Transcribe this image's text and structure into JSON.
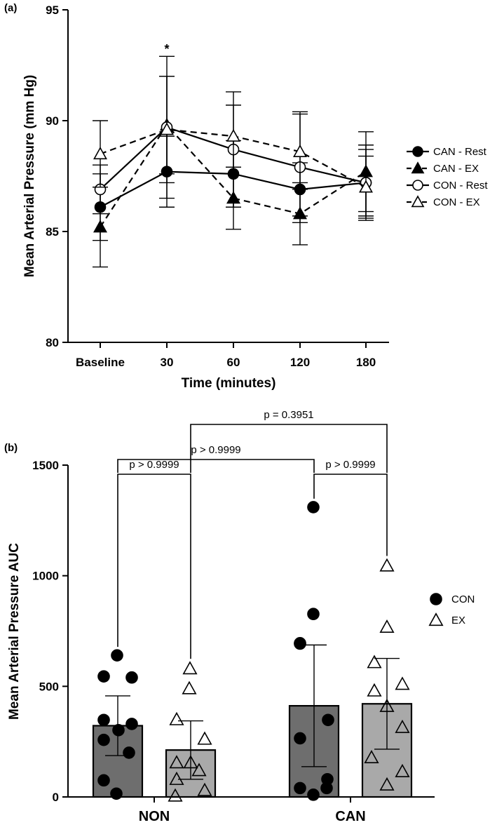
{
  "chart_data": [
    {
      "panel": "(a)",
      "type": "line",
      "xlabel": "Time (minutes)",
      "ylabel": "Mean Arterial Pressure (mm Hg)",
      "categories": [
        "Baseline",
        "30",
        "60",
        "120",
        "180"
      ],
      "ylim": [
        80,
        95
      ],
      "yticks": [
        80,
        85,
        90,
        95
      ],
      "grid": false,
      "legend_position": "right",
      "annotations": [
        {
          "category": "30",
          "text": "*"
        }
      ],
      "series": [
        {
          "name": "CAN - Rest",
          "marker": "filled-circle",
          "line": "solid",
          "values": [
            86.1,
            87.7,
            87.6,
            86.9,
            87.2
          ],
          "err": [
            1.5,
            1.6,
            1.5,
            1.2,
            1.5
          ]
        },
        {
          "name": "CAN - EX",
          "marker": "filled-triangle",
          "line": "dashed",
          "values": [
            85.2,
            89.8,
            86.5,
            85.8,
            87.7
          ],
          "err": [
            1.8,
            2.2,
            1.4,
            1.4,
            1.8
          ]
        },
        {
          "name": "CON - Rest",
          "marker": "open-circle",
          "line": "solid",
          "values": [
            86.9,
            89.7,
            88.7,
            87.9,
            87.2
          ],
          "err": [
            1.1,
            3.2,
            2.6,
            2.5,
            1.7
          ]
        },
        {
          "name": "CON - EX",
          "marker": "open-triangle",
          "line": "dashed",
          "values": [
            88.5,
            89.6,
            89.3,
            88.6,
            87.0
          ],
          "err": [
            1.5,
            2.4,
            1.4,
            1.7,
            1.4
          ]
        }
      ]
    },
    {
      "panel": "(b)",
      "type": "bar",
      "xlabel": "",
      "ylabel": "Mean Arterial Pressure AUC",
      "categories": [
        "NON",
        "CAN"
      ],
      "ylim": [
        0,
        1500
      ],
      "yticks": [
        0,
        500,
        1000,
        1500
      ],
      "grid": false,
      "legend_position": "right",
      "series": [
        {
          "name": "CON",
          "color": "#6e6e6e",
          "marker": "filled-circle",
          "values": [
            322,
            412
          ],
          "err": [
            135,
            275
          ],
          "points": [
            [
              640,
              545,
              540,
              348,
              330,
              302,
              258,
              200,
              75,
              15
            ],
            [
              1310,
              827,
              693,
              695,
              348,
              265,
              80,
              40,
              40,
              10
            ]
          ]
        },
        {
          "name": "EX",
          "color": "#a9a9a9",
          "marker": "open-triangle",
          "values": [
            212,
            421
          ],
          "err": [
            132,
            205
          ],
          "points": [
            [
              580,
              490,
              350,
              262,
              155,
              155,
              120,
              80,
              30,
              5
            ],
            [
              1045,
              768,
              608,
              510,
              480,
              410,
              315,
              178,
              115,
              55
            ]
          ]
        }
      ],
      "comparisons": [
        {
          "between": [
            "NON CON",
            "NON EX"
          ],
          "text": "p > 0.9999"
        },
        {
          "between": [
            "CAN CON",
            "CAN EX"
          ],
          "text": "p > 0.9999"
        },
        {
          "between": [
            "NON CON",
            "CAN CON"
          ],
          "text": "p > 0.9999"
        },
        {
          "between": [
            "NON EX",
            "CAN EX"
          ],
          "text": "p = 0.3951"
        }
      ]
    }
  ]
}
